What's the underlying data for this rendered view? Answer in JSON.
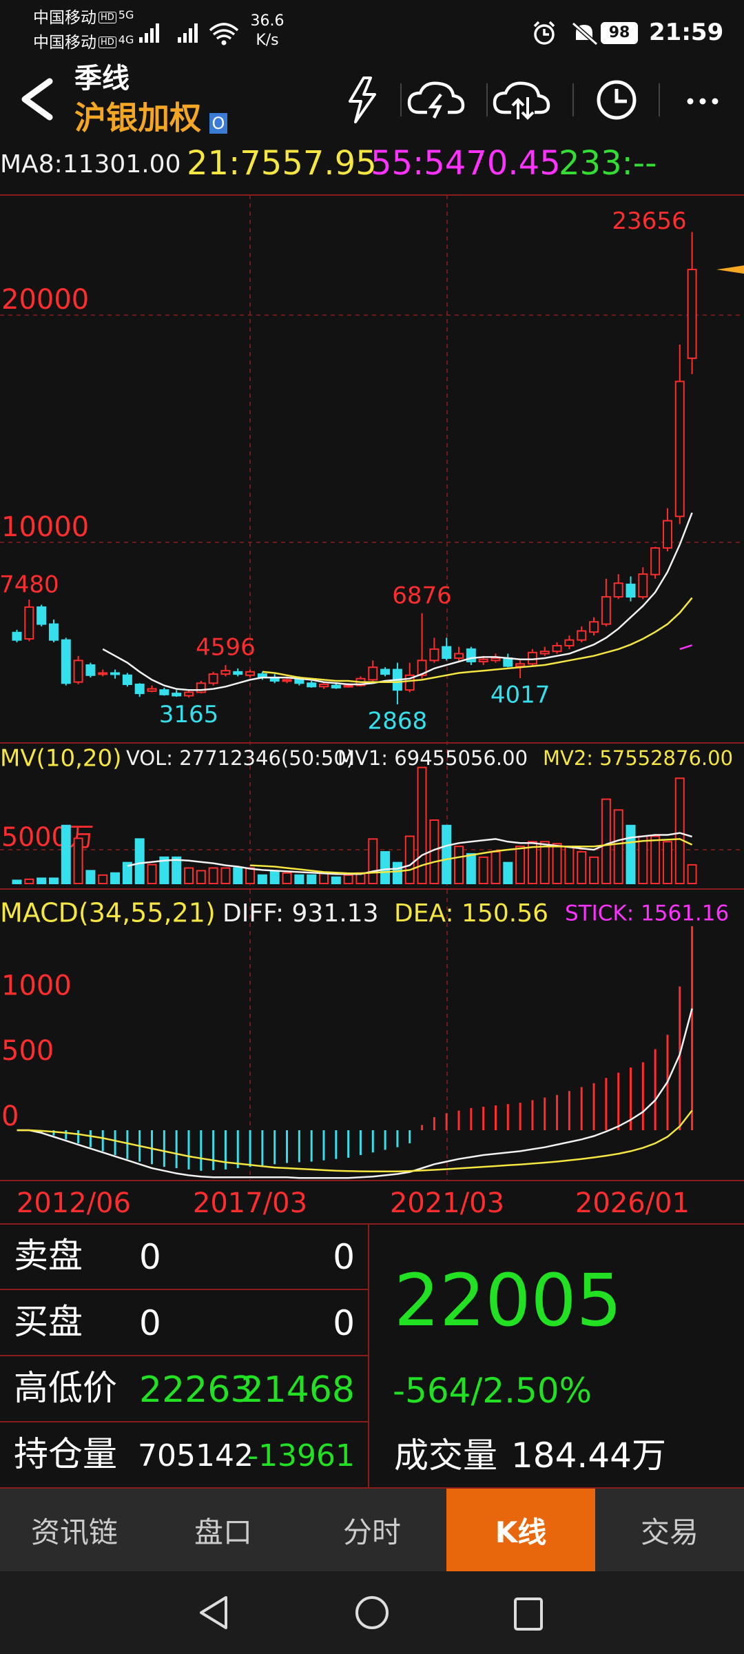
{
  "status_bar": {
    "carrier1": "中国移动",
    "badge1": "HD",
    "network1": "5G",
    "carrier2": "中国移动",
    "badge2": "HD",
    "network2": "4G",
    "speed": "36.6",
    "speed_unit": "K/s",
    "battery": "98",
    "time": "21:59"
  },
  "header": {
    "period": "季线",
    "instrument": "沪银加权",
    "badge": "O"
  },
  "kline": {
    "ma_legend": [
      "MA8:11301.00",
      "21:7557.95",
      "55:5470.45",
      "233:--"
    ],
    "price_ticks": [
      10000,
      20000
    ],
    "candles": [
      [
        6030,
        6150,
        5600,
        5700
      ],
      [
        5750,
        7480,
        5650,
        7150
      ],
      [
        7150,
        7250,
        6300,
        6400
      ],
      [
        6400,
        6600,
        5600,
        5700
      ],
      [
        5700,
        5800,
        3700,
        3800
      ],
      [
        3850,
        5000,
        3750,
        4800
      ],
      [
        4600,
        4700,
        4050,
        4150
      ],
      [
        4200,
        4400,
        4100,
        4250
      ],
      [
        4250,
        4400,
        4000,
        4200
      ],
      [
        4150,
        4250,
        3650,
        3750
      ],
      [
        3750,
        3800,
        3200,
        3350
      ],
      [
        3450,
        3700,
        3400,
        3550
      ],
      [
        3500,
        3600,
        3250,
        3300
      ],
      [
        3350,
        3500,
        3200,
        3250
      ],
      [
        3250,
        3500,
        3165,
        3400
      ],
      [
        3400,
        3900,
        3350,
        3800
      ],
      [
        3800,
        4300,
        3700,
        4200
      ],
      [
        4200,
        4596,
        4100,
        4350
      ],
      [
        4300,
        4450,
        4100,
        4200
      ],
      [
        4150,
        4400,
        4050,
        4300
      ],
      [
        4200,
        4300,
        3950,
        4050
      ],
      [
        4050,
        4200,
        3800,
        3900
      ],
      [
        3900,
        4100,
        3800,
        3950
      ],
      [
        3950,
        4100,
        3700,
        3800
      ],
      [
        3800,
        3900,
        3600,
        3650
      ],
      [
        3650,
        3850,
        3550,
        3750
      ],
      [
        3700,
        3800,
        3550,
        3600
      ],
      [
        3650,
        3800,
        3600,
        3700
      ],
      [
        3700,
        4100,
        3650,
        4000
      ],
      [
        3950,
        4800,
        3850,
        4500
      ],
      [
        4400,
        4500,
        4100,
        4200
      ],
      [
        4400,
        4700,
        2868,
        3500
      ],
      [
        3500,
        4700,
        3400,
        4150
      ],
      [
        4150,
        6876,
        4000,
        4800
      ],
      [
        4800,
        5800,
        4700,
        5300
      ],
      [
        5400,
        5800,
        4800,
        4900
      ],
      [
        4900,
        5400,
        4800,
        5100
      ],
      [
        5300,
        5400,
        4600,
        4750
      ],
      [
        4750,
        5000,
        4600,
        4850
      ],
      [
        4800,
        5100,
        4700,
        4900
      ],
      [
        4900,
        5100,
        4500,
        4550
      ],
      [
        4550,
        4800,
        4017,
        4650
      ],
      [
        4650,
        5300,
        4550,
        5150
      ],
      [
        5100,
        5400,
        5000,
        5200
      ],
      [
        5200,
        5600,
        5100,
        5450
      ],
      [
        5450,
        5900,
        5300,
        5700
      ],
      [
        5700,
        6300,
        5600,
        6100
      ],
      [
        6050,
        6700,
        5900,
        6500
      ],
      [
        6400,
        8400,
        6300,
        7600
      ],
      [
        7600,
        8600,
        7500,
        8200
      ],
      [
        8150,
        8500,
        7400,
        7600
      ],
      [
        7600,
        8900,
        7500,
        8600
      ],
      [
        8580,
        9800,
        8400,
        9750
      ],
      [
        9750,
        11500,
        9600,
        10950
      ],
      [
        11140,
        18700,
        10800,
        17080
      ],
      [
        18100,
        23656,
        17400,
        22005
      ]
    ],
    "ma8": [
      null,
      null,
      null,
      null,
      null,
      null,
      null,
      5300,
      5000,
      4700,
      4300,
      3950,
      3700,
      3550,
      3500,
      3500,
      3550,
      3650,
      3800,
      3950,
      4050,
      4050,
      4050,
      4000,
      3950,
      3850,
      3800,
      3750,
      3750,
      3800,
      3900,
      3950,
      4000,
      4200,
      4450,
      4600,
      4750,
      4900,
      4950,
      4950,
      4900,
      4850,
      4850,
      4900,
      5000,
      5100,
      5300,
      5500,
      5800,
      6200,
      6700,
      7200,
      7800,
      8700,
      9900,
      11301
    ],
    "ma21": [
      null,
      null,
      null,
      null,
      null,
      null,
      null,
      null,
      null,
      null,
      null,
      null,
      null,
      null,
      null,
      null,
      null,
      null,
      null,
      null,
      4300,
      4250,
      4150,
      4050,
      4000,
      3950,
      3900,
      3900,
      3850,
      3850,
      3850,
      3850,
      3900,
      3950,
      4050,
      4150,
      4250,
      4300,
      4350,
      4400,
      4450,
      4500,
      4550,
      4600,
      4700,
      4800,
      4900,
      5000,
      5150,
      5300,
      5500,
      5750,
      6050,
      6400,
      6900,
      7557.95
    ],
    "ma55": [
      null,
      null,
      null,
      null,
      null,
      null,
      null,
      null,
      null,
      null,
      null,
      null,
      null,
      null,
      null,
      null,
      null,
      null,
      null,
      null,
      null,
      null,
      null,
      null,
      null,
      null,
      null,
      null,
      null,
      null,
      null,
      null,
      null,
      null,
      null,
      null,
      null,
      null,
      null,
      null,
      null,
      null,
      null,
      null,
      null,
      null,
      null,
      null,
      null,
      null,
      null,
      null,
      null,
      null,
      5300,
      5470.45
    ],
    "dates": [
      "2012/06",
      "2017/03",
      "2021/03",
      "2026/01"
    ]
  },
  "volume": {
    "legend": [
      "MV(10,20)",
      "VOL: 27712346(50:50)",
      "MV1: 69455056.00",
      "MV2: 57552876.00"
    ],
    "ticks": [
      {
        "value": 50000000,
        "label": "5000万"
      }
    ],
    "values": [
      4700000,
      6300000,
      7800000,
      7800000,
      86000000,
      67000000,
      19000000,
      12500000,
      15600000,
      31000000,
      66000000,
      28000000,
      39000000,
      39000000,
      23000000,
      19000000,
      23000000,
      23000000,
      23000000,
      23000000,
      12500000,
      19000000,
      15600000,
      12500000,
      12500000,
      15600000,
      9400000,
      12500000,
      15600000,
      66000000,
      47000000,
      31000000,
      70000000,
      172000000,
      94000000,
      86000000,
      55000000,
      44000000,
      39000000,
      47000000,
      31000000,
      55000000,
      62000000,
      62000000,
      59000000,
      55000000,
      47000000,
      39000000,
      125000000,
      109000000,
      86000000,
      70000000,
      70000000,
      62000000,
      156000000,
      27712346
    ],
    "mv1": [
      null,
      null,
      null,
      null,
      null,
      null,
      null,
      null,
      null,
      26000000,
      30000000,
      32000000,
      34000000,
      35000000,
      34000000,
      32000000,
      30000000,
      27000000,
      25000000,
      22000000,
      20000000,
      19000000,
      18000000,
      17000000,
      16000000,
      15000000,
      14000000,
      14000000,
      14000000,
      18000000,
      21000000,
      22000000,
      27000000,
      42000000,
      50000000,
      56000000,
      60000000,
      62000000,
      64000000,
      66000000,
      62000000,
      60000000,
      60000000,
      58000000,
      56000000,
      54000000,
      52000000,
      50000000,
      58000000,
      64000000,
      68000000,
      70000000,
      72000000,
      72000000,
      75000000,
      69455056
    ],
    "mv2": [
      null,
      null,
      null,
      null,
      null,
      null,
      null,
      null,
      null,
      null,
      null,
      null,
      null,
      null,
      null,
      null,
      null,
      null,
      null,
      27000000,
      26000000,
      25000000,
      23000000,
      21000000,
      19000000,
      17000000,
      16000000,
      15000000,
      15000000,
      16000000,
      17000000,
      18000000,
      20000000,
      27000000,
      32000000,
      36000000,
      39000000,
      42000000,
      45000000,
      48000000,
      50000000,
      52000000,
      54000000,
      55000000,
      55000000,
      55000000,
      55000000,
      55000000,
      57000000,
      59000000,
      61000000,
      63000000,
      64000000,
      65000000,
      66000000,
      57552876
    ]
  },
  "macd": {
    "legend": [
      "MACD(34,55,21)",
      "DIFF: 931.13",
      "DEA: 150.56",
      "STICK: 1561.16"
    ],
    "ticks": [
      0,
      500,
      1000
    ],
    "stick": [
      0,
      0,
      -20,
      -40,
      -70,
      -100,
      -130,
      -160,
      -190,
      -220,
      -240,
      -260,
      -280,
      -290,
      -300,
      -310,
      -305,
      -300,
      -290,
      -280,
      -270,
      -260,
      -250,
      -245,
      -240,
      -230,
      -220,
      -210,
      -190,
      -170,
      -150,
      -130,
      -100,
      40,
      100,
      130,
      150,
      170,
      180,
      190,
      200,
      210,
      230,
      250,
      270,
      300,
      330,
      360,
      400,
      440,
      480,
      520,
      620,
      730,
      1100,
      1561.16
    ],
    "diff": [
      0,
      0,
      -20,
      -50,
      -80,
      -110,
      -140,
      -170,
      -200,
      -230,
      -260,
      -290,
      -310,
      -330,
      -345,
      -355,
      -360,
      -360,
      -360,
      -360,
      -360,
      -360,
      -360,
      -365,
      -365,
      -365,
      -365,
      -365,
      -360,
      -355,
      -345,
      -335,
      -320,
      -290,
      -260,
      -240,
      -220,
      -205,
      -190,
      -180,
      -170,
      -160,
      -145,
      -130,
      -110,
      -90,
      -70,
      -45,
      -10,
      30,
      80,
      140,
      230,
      370,
      580,
      931.13
    ],
    "dea": [
      0,
      0,
      -5,
      -12,
      -20,
      -30,
      -45,
      -60,
      -80,
      -100,
      -120,
      -140,
      -160,
      -180,
      -200,
      -215,
      -230,
      -245,
      -255,
      -265,
      -275,
      -285,
      -290,
      -295,
      -300,
      -305,
      -310,
      -312,
      -314,
      -315,
      -315,
      -315,
      -312,
      -308,
      -303,
      -298,
      -292,
      -286,
      -280,
      -274,
      -268,
      -262,
      -255,
      -248,
      -240,
      -230,
      -220,
      -208,
      -195,
      -180,
      -160,
      -135,
      -100,
      -50,
      30,
      150.56
    ]
  },
  "quote_panel": {
    "rows": [
      [
        "卖盘",
        0,
        0
      ],
      [
        "买盘",
        0,
        0
      ],
      [
        "高低价",
        22263,
        21468
      ],
      [
        "持仓量",
        705142,
        -13961
      ]
    ],
    "last": 22005,
    "change": "-564/2.50%",
    "volume_label": "成交量",
    "volume": "184.44万"
  },
  "tabs": [
    "资讯链",
    "盘口",
    "分时",
    "K线",
    "交易"
  ]
}
